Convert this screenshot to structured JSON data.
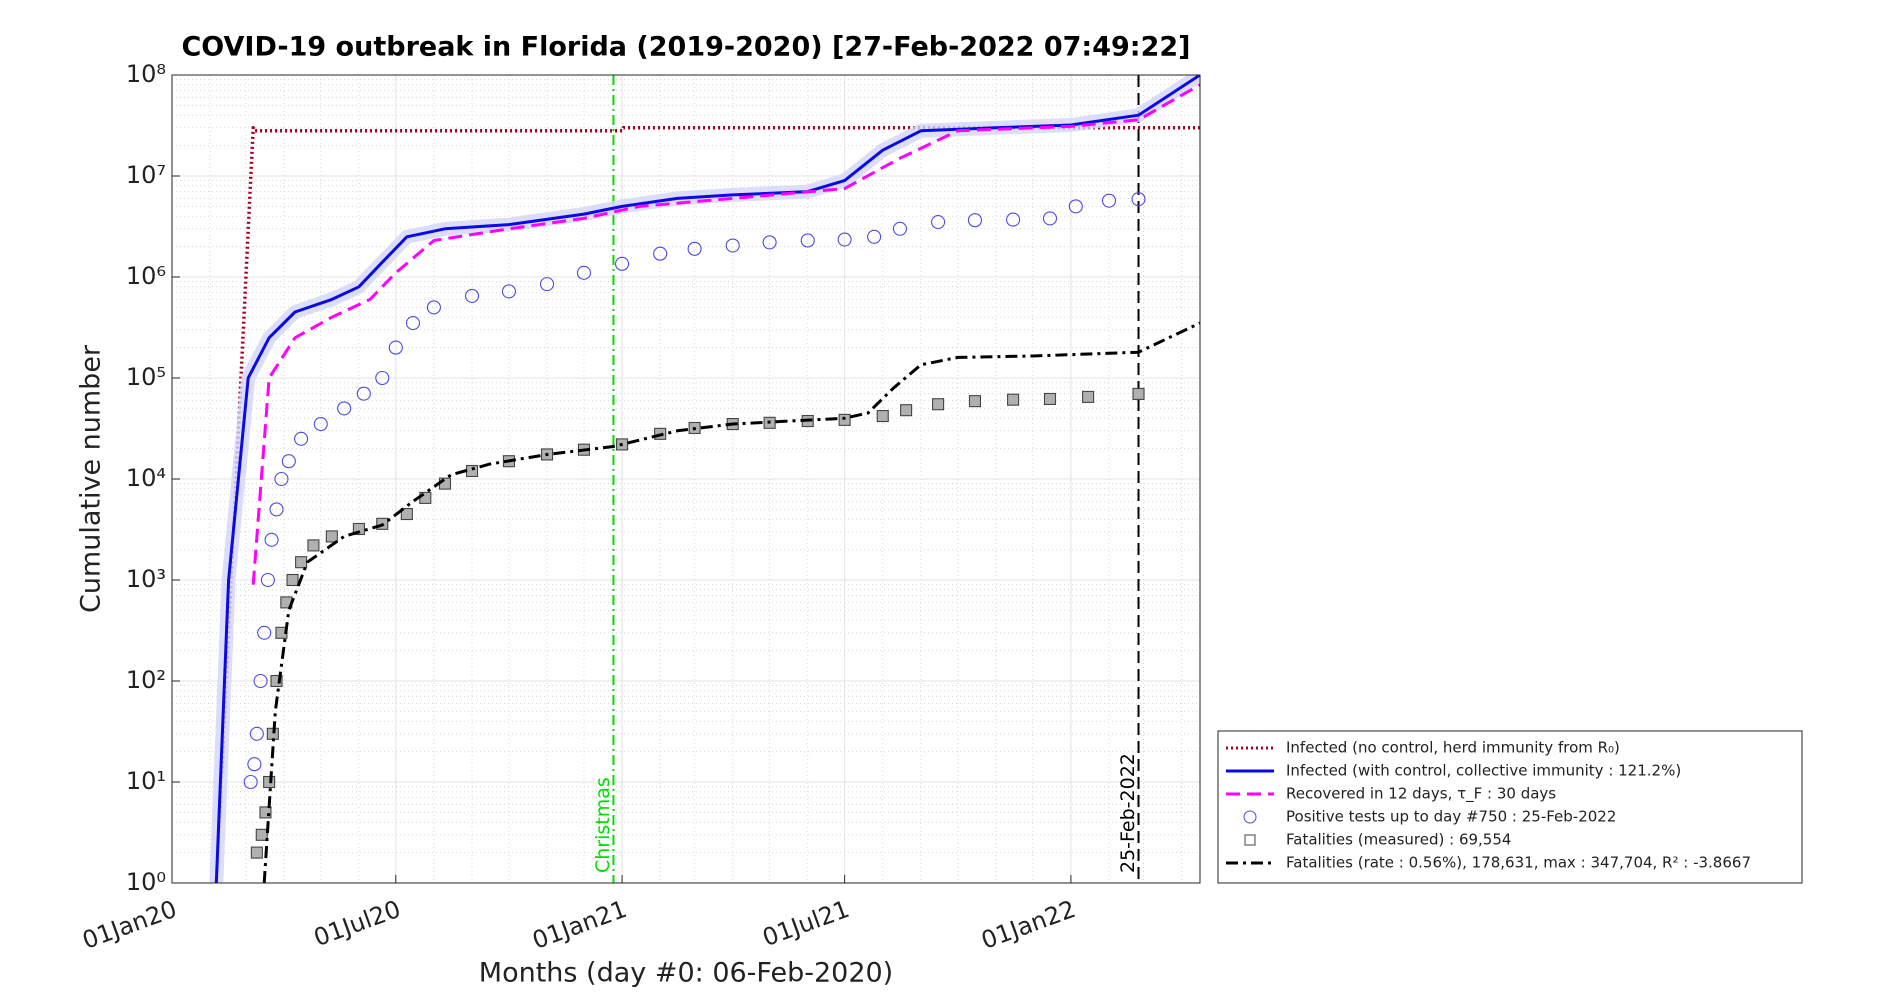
{
  "chart_data": {
    "type": "line",
    "title": "COVID-19 outbreak in Florida (2019-2020) [27-Feb-2022 07:49:22]",
    "x_label": "Months (day #0: 06-Feb-2020)",
    "y_label": "Cumulative number",
    "log_y": true,
    "grid": true,
    "minor_grid": true,
    "legend": "lower right outside",
    "xlim": [
      "2020-01-01",
      "2022-04-16"
    ],
    "xticks": [
      {
        "value": "2020-01-01",
        "label": "01Jan20"
      },
      {
        "value": "2020-07-01",
        "label": "01Jul20"
      },
      {
        "value": "2021-01-01",
        "label": "01Jan21"
      },
      {
        "value": "2021-07-01",
        "label": "01Jul21"
      },
      {
        "value": "2022-01-01",
        "label": "01Jan22"
      }
    ],
    "ylim": [
      1,
      100000000
    ],
    "yticks": [
      {
        "value": 1,
        "label": "10⁰"
      },
      {
        "value": 10,
        "label": "10¹"
      },
      {
        "value": 100,
        "label": "10²"
      },
      {
        "value": 1000,
        "label": "10³"
      },
      {
        "value": 10000,
        "label": "10⁴"
      },
      {
        "value": 100000,
        "label": "10⁵"
      },
      {
        "value": 1000000,
        "label": "10⁶"
      },
      {
        "value": 10000000,
        "label": "10⁷"
      },
      {
        "value": 100000000,
        "label": "10⁸"
      }
    ],
    "annotations": [
      {
        "x": "2020-12-25",
        "label": "Christmas",
        "color": "#00dd00",
        "dash": "dashdot"
      },
      {
        "x": "2022-02-25",
        "label": "25-Feb-2022",
        "color": "#000000",
        "dash": "dashed"
      }
    ],
    "series": [
      {
        "name": "Infected (no control, herd immunity from R₀)",
        "color": "#a50021",
        "style": "dotted",
        "x": [
          "2020-02-06",
          "2020-03-07",
          "2020-03-08",
          "2021-01-01",
          "2021-01-02",
          "2022-04-16"
        ],
        "values": [
          1,
          30000000,
          28000000,
          28000000,
          30000000,
          30000000
        ]
      },
      {
        "name": "Infected (with control, collective immunity : 121.2%)",
        "color": "#0a0ae6",
        "style": "solid",
        "band": "#d3d6f7",
        "x": [
          "2020-02-06",
          "2020-02-16",
          "2020-03-03",
          "2020-03-20",
          "2020-04-10",
          "2020-05-10",
          "2020-06-01",
          "2020-06-20",
          "2020-07-10",
          "2020-08-10",
          "2020-10-01",
          "2020-12-01",
          "2021-01-01",
          "2021-02-15",
          "2021-04-01",
          "2021-06-01",
          "2021-07-01",
          "2021-08-01",
          "2021-09-01",
          "2021-11-01",
          "2022-01-01",
          "2022-02-25",
          "2022-04-16"
        ],
        "values": [
          1,
          1000,
          100000,
          250000,
          450000,
          600000,
          800000,
          1400000,
          2500000,
          3000000,
          3300000,
          4200000,
          5000000,
          6000000,
          6500000,
          7000000,
          9000000,
          18000000,
          28000000,
          30000000,
          32000000,
          40000000,
          100000000
        ]
      },
      {
        "name": "Recovered in 12 days, τ_F : 30 days",
        "color": "#ff00ff",
        "style": "dashed",
        "x": [
          "2020-03-07",
          "2020-03-20",
          "2020-04-10",
          "2020-05-10",
          "2020-06-10",
          "2020-07-01",
          "2020-08-01",
          "2020-10-01",
          "2020-12-01",
          "2021-01-15",
          "2021-04-01",
          "2021-07-01",
          "2021-08-15",
          "2021-10-01",
          "2022-01-01",
          "2022-02-25",
          "2022-04-16"
        ],
        "values": [
          900,
          100000,
          250000,
          400000,
          600000,
          1100000,
          2300000,
          3000000,
          3800000,
          5000000,
          6000000,
          7500000,
          15000000,
          28000000,
          31000000,
          36000000,
          80000000
        ]
      },
      {
        "name": "Positive tests up to day #750 : 25-Feb-2022",
        "color": "#4a4ae6",
        "style": "circle",
        "x": [
          "2020-03-05",
          "2020-03-08",
          "2020-03-10",
          "2020-03-13",
          "2020-03-16",
          "2020-03-19",
          "2020-03-22",
          "2020-03-26",
          "2020-03-30",
          "2020-04-05",
          "2020-04-15",
          "2020-05-01",
          "2020-05-20",
          "2020-06-05",
          "2020-06-20",
          "2020-07-01",
          "2020-07-15",
          "2020-08-01",
          "2020-09-01",
          "2020-10-01",
          "2020-11-01",
          "2020-12-01",
          "2021-01-01",
          "2021-02-01",
          "2021-03-01",
          "2021-04-01",
          "2021-05-01",
          "2021-06-01",
          "2021-07-01",
          "2021-07-25",
          "2021-08-15",
          "2021-09-15",
          "2021-10-15",
          "2021-11-15",
          "2021-12-15",
          "2022-01-05",
          "2022-02-01",
          "2022-02-25"
        ],
        "values": [
          10,
          15,
          30,
          100,
          300,
          1000,
          2500,
          5000,
          10000,
          15000,
          25000,
          35000,
          50000,
          70000,
          100000,
          200000,
          350000,
          500000,
          650000,
          720000,
          850000,
          1100000,
          1350000,
          1700000,
          1900000,
          2050000,
          2200000,
          2300000,
          2350000,
          2500000,
          3000000,
          3500000,
          3650000,
          3700000,
          3800000,
          5000000,
          5700000,
          5900000
        ]
      },
      {
        "name": "Fatalities (measured) : 69,554",
        "color": "#444444",
        "style": "square",
        "x": [
          "2020-03-10",
          "2020-03-14",
          "2020-03-17",
          "2020-03-20",
          "2020-03-23",
          "2020-03-26",
          "2020-03-30",
          "2020-04-03",
          "2020-04-08",
          "2020-04-15",
          "2020-04-25",
          "2020-05-10",
          "2020-06-01",
          "2020-06-20",
          "2020-07-10",
          "2020-07-25",
          "2020-08-10",
          "2020-09-01",
          "2020-10-01",
          "2020-11-01",
          "2020-12-01",
          "2021-01-01",
          "2021-02-01",
          "2021-03-01",
          "2021-04-01",
          "2021-05-01",
          "2021-06-01",
          "2021-07-01",
          "2021-08-01",
          "2021-08-20",
          "2021-09-15",
          "2021-10-15",
          "2021-11-15",
          "2021-12-15",
          "2022-01-15",
          "2022-02-25"
        ],
        "values": [
          2,
          3,
          5,
          10,
          30,
          100,
          300,
          600,
          1000,
          1500,
          2200,
          2700,
          3200,
          3600,
          4500,
          6500,
          9000,
          12000,
          15000,
          17500,
          19500,
          22000,
          28000,
          32000,
          35000,
          36000,
          37500,
          38500,
          42000,
          48000,
          55000,
          59000,
          61000,
          62000,
          65000,
          69554
        ]
      },
      {
        "name": "Fatalities (rate : 0.56%), 178,631, max : 347,704, R² : -3.8667",
        "color": "#000000",
        "style": "dashdot",
        "x": [
          "2020-03-16",
          "2020-03-25",
          "2020-04-05",
          "2020-04-20",
          "2020-05-20",
          "2020-06-20",
          "2020-07-15",
          "2020-08-15",
          "2020-09-15",
          "2020-11-01",
          "2020-12-25",
          "2021-02-15",
          "2021-04-01",
          "2021-07-01",
          "2021-07-20",
          "2021-08-10",
          "2021-09-01",
          "2021-10-01",
          "2021-12-01",
          "2022-02-25",
          "2022-04-16"
        ],
        "values": [
          1,
          50,
          500,
          1500,
          2700,
          3500,
          6000,
          11000,
          14000,
          17500,
          21000,
          30000,
          35000,
          40000,
          45000,
          80000,
          135000,
          160000,
          165000,
          180000,
          350000
        ]
      }
    ]
  }
}
